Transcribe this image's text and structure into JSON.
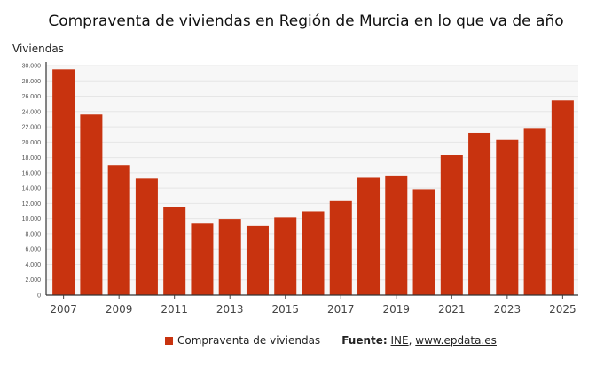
{
  "chart_data": {
    "type": "bar",
    "title": "Compraventa de viviendas en Región de Murcia en lo que va de año",
    "ylabel": "Viviendas",
    "xlabel": "",
    "categories": [
      "2007",
      "2008",
      "2009",
      "2010",
      "2011",
      "2012",
      "2013",
      "2014",
      "2015",
      "2016",
      "2017",
      "2018",
      "2019",
      "2020",
      "2021",
      "2022",
      "2023",
      "2024",
      "2025"
    ],
    "series": [
      {
        "name": "Compraventa de viviendas",
        "values": [
          29500,
          23600,
          17000,
          15250,
          11550,
          9350,
          9950,
          9050,
          10150,
          10950,
          12300,
          15350,
          15650,
          13850,
          18300,
          21200,
          20300,
          21850,
          25450
        ],
        "color": "#c8330f"
      }
    ],
    "ylim": [
      0,
      30000
    ],
    "yticks": [
      "0",
      "2.000",
      "4.000",
      "6.000",
      "8.000",
      "10.000",
      "12.000",
      "14.000",
      "16.000",
      "18.000",
      "20.000",
      "22.000",
      "24.000",
      "26.000",
      "28.000",
      "30.000"
    ],
    "xticks": [
      "2007",
      "2009",
      "2011",
      "2013",
      "2015",
      "2017",
      "2019",
      "2021",
      "2023",
      "2025"
    ],
    "grid": true,
    "legend": "bottom"
  },
  "source": {
    "label": "Fuente:",
    "ine": "INE",
    "sep": ",",
    "site": "www.epdata.es"
  }
}
